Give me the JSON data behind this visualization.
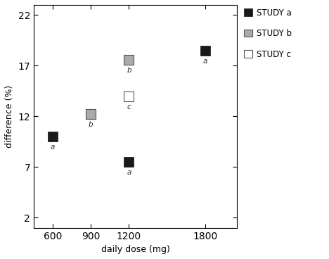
{
  "study_a": {
    "x": [
      600,
      1200,
      1800
    ],
    "y": [
      10.0,
      7.5,
      18.5
    ],
    "color": "#1a1a1a",
    "label": "STUDY a",
    "point_labels": [
      "a",
      "a",
      "a"
    ],
    "label_ha": [
      "center",
      "center",
      "center"
    ]
  },
  "study_b": {
    "x": [
      900,
      1200
    ],
    "y": [
      12.2,
      17.6
    ],
    "label": "STUDY b",
    "point_labels": [
      "b",
      "b"
    ]
  },
  "study_c": {
    "x": [
      1200
    ],
    "y": [
      14.0
    ],
    "label": "STUDY c",
    "point_labels": [
      "c"
    ]
  },
  "yticks": [
    2,
    7,
    12,
    17,
    22
  ],
  "xticks": [
    600,
    900,
    1200,
    1800
  ],
  "ylim": [
    1,
    23
  ],
  "xlim": [
    450,
    2050
  ],
  "xlabel": "daily dose (mg)",
  "ylabel": "difference (%)",
  "marker_size": 100,
  "bg_color": "#ffffff"
}
